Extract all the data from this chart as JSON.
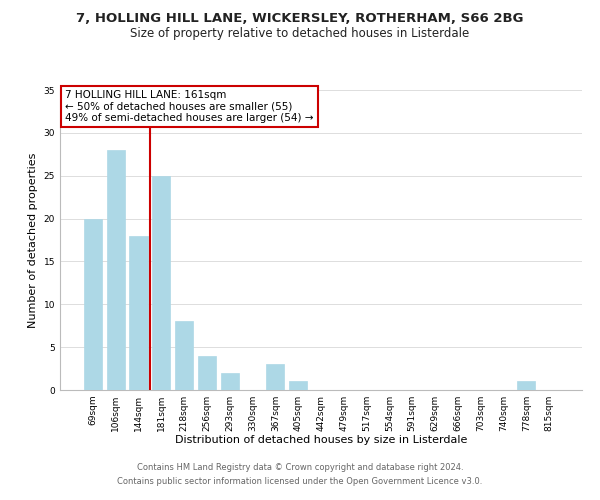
{
  "title1": "7, HOLLING HILL LANE, WICKERSLEY, ROTHERHAM, S66 2BG",
  "title2": "Size of property relative to detached houses in Listerdale",
  "xlabel": "Distribution of detached houses by size in Listerdale",
  "ylabel": "Number of detached properties",
  "bar_color": "#add8e6",
  "bar_edge_color": "#add8e6",
  "vline_color": "#cc0000",
  "vline_x_idx": 2,
  "annotation_text": "7 HOLLING HILL LANE: 161sqm\n← 50% of detached houses are smaller (55)\n49% of semi-detached houses are larger (54) →",
  "bins": [
    "69sqm",
    "106sqm",
    "144sqm",
    "181sqm",
    "218sqm",
    "256sqm",
    "293sqm",
    "330sqm",
    "367sqm",
    "405sqm",
    "442sqm",
    "479sqm",
    "517sqm",
    "554sqm",
    "591sqm",
    "629sqm",
    "666sqm",
    "703sqm",
    "740sqm",
    "778sqm",
    "815sqm"
  ],
  "counts": [
    20,
    28,
    18,
    25,
    8,
    4,
    2,
    0,
    3,
    1,
    0,
    0,
    0,
    0,
    0,
    0,
    0,
    0,
    0,
    1,
    0
  ],
  "ylim": [
    0,
    35
  ],
  "yticks": [
    0,
    5,
    10,
    15,
    20,
    25,
    30,
    35
  ],
  "footer1": "Contains HM Land Registry data © Crown copyright and database right 2024.",
  "footer2": "Contains public sector information licensed under the Open Government Licence v3.0.",
  "bg_color": "#ffffff",
  "grid_color": "#d8d8d8",
  "annotation_box_color": "#ffffff",
  "annotation_box_edge": "#cc0000",
  "title1_fontsize": 9.5,
  "title2_fontsize": 8.5,
  "tick_fontsize": 6.5,
  "ylabel_fontsize": 8,
  "xlabel_fontsize": 8,
  "annot_fontsize": 7.5,
  "footer_fontsize": 6
}
